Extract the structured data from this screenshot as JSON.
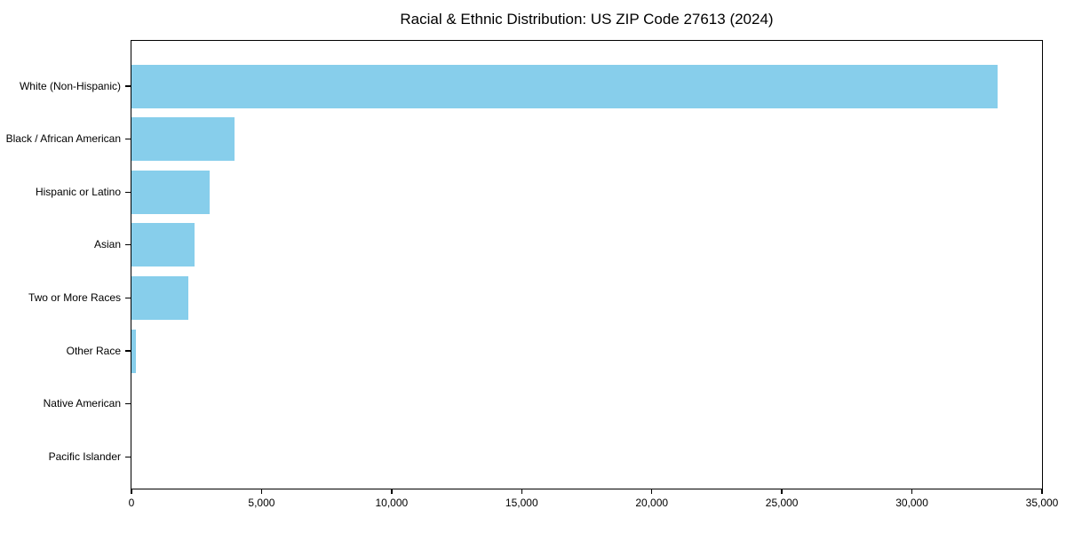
{
  "figure": {
    "background": "#ffffff"
  },
  "chart_data": {
    "type": "bar",
    "orientation": "horizontal",
    "title": "Racial & Ethnic Distribution: US ZIP Code 27613 (2024)",
    "categories": [
      "White (Non-Hispanic)",
      "Black / African American",
      "Hispanic or Latino",
      "Asian",
      "Two or More Races",
      "Other Race",
      "Native American",
      "Pacific Islander"
    ],
    "values": [
      33300,
      3950,
      3000,
      2430,
      2180,
      170,
      0,
      0
    ],
    "xlabel": "",
    "ylabel": "",
    "xlim": [
      0,
      35000
    ],
    "xticks": [
      0,
      5000,
      10000,
      15000,
      20000,
      25000,
      30000,
      35000
    ],
    "xtick_labels": [
      "0",
      "5,000",
      "10,000",
      "15,000",
      "20,000",
      "25,000",
      "30,000",
      "35,000"
    ],
    "bar_color": "#87CEEB",
    "axis_color": "#000000",
    "text_color": "#000000",
    "plot_background": "#ffffff",
    "grid": false,
    "legend": null
  }
}
